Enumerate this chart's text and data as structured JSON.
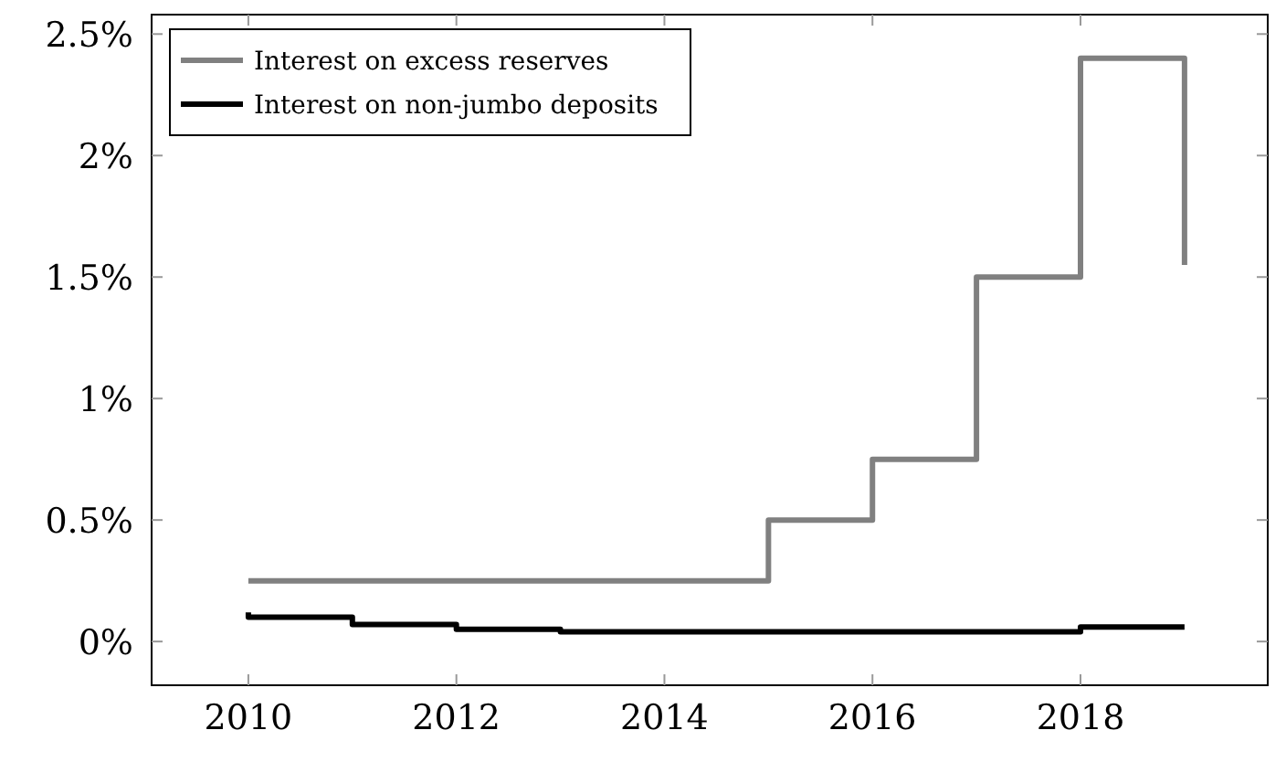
{
  "chart_data": {
    "type": "step",
    "xlim": [
      2009.07,
      2019.8
    ],
    "xticks": [
      2010,
      2012,
      2014,
      2016,
      2018
    ],
    "ylim": [
      -0.18,
      2.58
    ],
    "yticks": [
      {
        "value": 0,
        "label": "0%"
      },
      {
        "value": 0.5,
        "label": "0.5%"
      },
      {
        "value": 1,
        "label": "1%"
      },
      {
        "value": 1.5,
        "label": "1.5%"
      },
      {
        "value": 2,
        "label": "2%"
      },
      {
        "value": 2.5,
        "label": "2.5%"
      }
    ],
    "legend": "top left",
    "series": [
      {
        "name": "Interest on excess reserves",
        "color": "#808080",
        "x": [
          2010,
          2015,
          2016,
          2017,
          2018,
          2019
        ],
        "values": [
          0.25,
          0.5,
          0.75,
          1.5,
          2.4,
          1.55
        ]
      },
      {
        "name": "Interest on non-jumbo deposits",
        "color": "#000000",
        "x": [
          2010,
          2010,
          2011,
          2012,
          2013,
          2018,
          2019
        ],
        "values": [
          0.12,
          0.1,
          0.07,
          0.05,
          0.04,
          0.06,
          0.06
        ]
      }
    ]
  }
}
